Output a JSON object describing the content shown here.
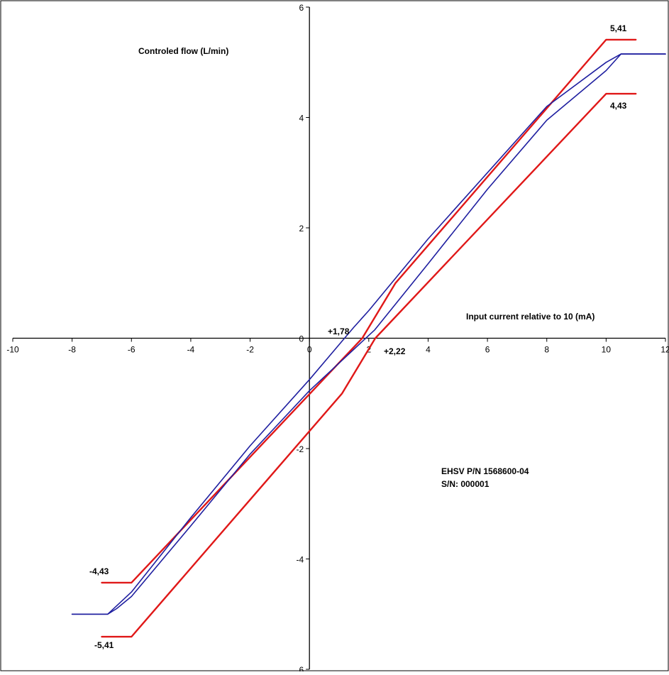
{
  "chart_data": {
    "type": "line",
    "title": "",
    "ylabel": "Controled flow (L/min)",
    "xlabel": "Input current relative to 10 (mA)",
    "xlim": [
      -10,
      12
    ],
    "ylim": [
      -6,
      6
    ],
    "x_ticks": [
      -10,
      -8,
      -6,
      -4,
      -2,
      0,
      2,
      4,
      6,
      8,
      10,
      12
    ],
    "y_ticks": [
      -6,
      -4,
      -2,
      0,
      2,
      4,
      6
    ],
    "x_tick_labels": [
      "-10",
      "-8",
      "-6",
      "-4",
      "-2",
      "0",
      "2",
      "4",
      "6",
      "8",
      "10",
      "12"
    ],
    "y_tick_labels": [
      "-6",
      "-4",
      "-2",
      "0",
      "2",
      "4",
      "6"
    ],
    "grid": false,
    "colors": {
      "measured": "#1f1fa0",
      "limits": "#e01818",
      "axes": "#000000"
    },
    "annotations": {
      "upper_max": "5,41",
      "lower_max": "4,43",
      "upper_min": "-4,43",
      "lower_min": "-5,41",
      "cross_left": "+1,78",
      "cross_right": "+2,22",
      "device_pn": "EHSV P/N 1568600-04",
      "device_sn": "S/N: 000001"
    },
    "series": [
      {
        "role": "upper-limit",
        "color": "#e01818",
        "x": [
          -6,
          -7,
          -6,
          1.78,
          2.9,
          10,
          11
        ],
        "y": [
          -4.43,
          -4.43,
          -4.43,
          0,
          1.0,
          5.41,
          5.41
        ]
      },
      {
        "role": "lower-limit",
        "color": "#e01818",
        "x": [
          -7,
          -6,
          1.1,
          2.22,
          10,
          11
        ],
        "y": [
          -5.41,
          -5.41,
          -1.0,
          0,
          4.43,
          4.43
        ]
      },
      {
        "role": "measured-increasing",
        "color": "#1f1fa0",
        "x": [
          -8,
          -6.8,
          -6.5,
          -6,
          -4,
          -2,
          0,
          1.5,
          2,
          4,
          6,
          8,
          10,
          10.5,
          12
        ],
        "y": [
          -5.0,
          -5.0,
          -4.85,
          -4.6,
          -3.25,
          -1.95,
          -0.75,
          0.2,
          0.5,
          1.8,
          3.0,
          4.2,
          5.0,
          5.15,
          5.15
        ]
      },
      {
        "role": "measured-decreasing",
        "color": "#1f1fa0",
        "x": [
          -8,
          -6.8,
          -6.5,
          -6,
          -4,
          -2,
          0,
          2,
          2.2,
          4,
          6,
          8,
          10,
          10.5,
          12
        ],
        "y": [
          -5.0,
          -5.0,
          -4.9,
          -4.68,
          -3.4,
          -2.1,
          -0.95,
          0.05,
          0.15,
          1.35,
          2.7,
          3.95,
          4.85,
          5.15,
          5.15
        ]
      }
    ]
  }
}
